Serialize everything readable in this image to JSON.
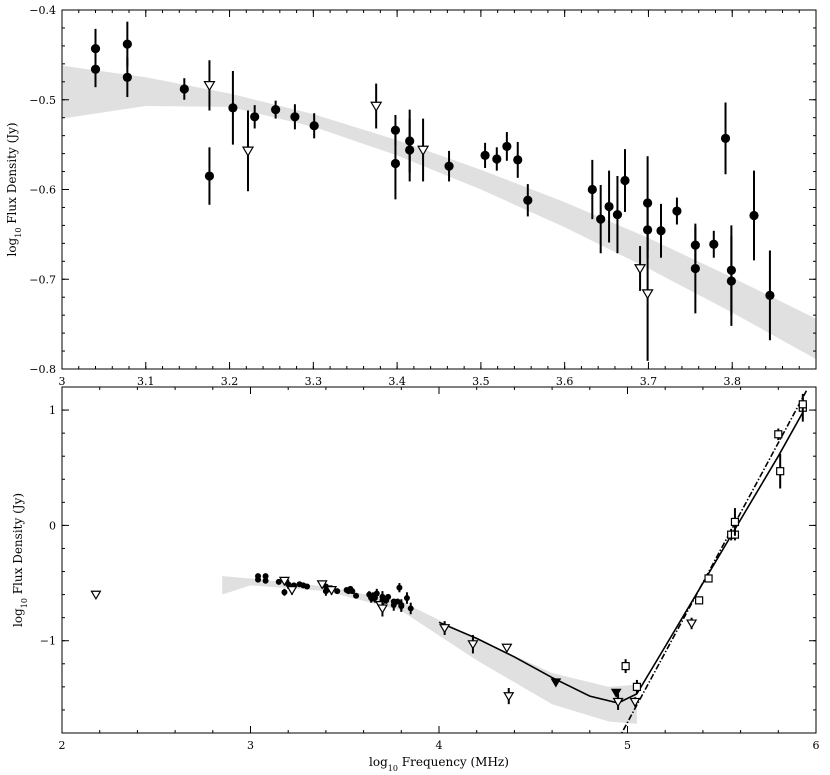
{
  "chart_data": [
    {
      "type": "scatter",
      "title": "",
      "xlabel": "",
      "ylabel": "log10 Flux Density (Jy)",
      "ylabel_parts": [
        "log",
        "10",
        " Flux Density (Jy)"
      ],
      "xlim": [
        3.0,
        3.9
      ],
      "ylim": [
        -0.8,
        -0.4
      ],
      "xticks": [
        3.0,
        3.1,
        3.2,
        3.3,
        3.4,
        3.5,
        3.6,
        3.7,
        3.8
      ],
      "xtick_labels": [
        "3",
        "3.1",
        "3.2",
        "3.3",
        "3.4",
        "3.5",
        "3.6",
        "3.7",
        "3.8"
      ],
      "yticks": [
        -0.8,
        -0.7,
        -0.6,
        -0.5,
        -0.4
      ],
      "ytick_labels": [
        "−0.8",
        "−0.7",
        "−0.6",
        "−0.5",
        "−0.4"
      ],
      "x_minor_step": 0.02,
      "y_minor_step": 0.02,
      "band": {
        "color": "#e0e0e0",
        "x": [
          3.0,
          3.1,
          3.2,
          3.3,
          3.4,
          3.5,
          3.6,
          3.7,
          3.8,
          3.9
        ],
        "upper": [
          -0.462,
          -0.475,
          -0.493,
          -0.516,
          -0.545,
          -0.578,
          -0.614,
          -0.654,
          -0.698,
          -0.744
        ],
        "lower": [
          -0.521,
          -0.507,
          -0.508,
          -0.53,
          -0.562,
          -0.6,
          -0.642,
          -0.688,
          -0.737,
          -0.789
        ]
      },
      "series": [
        {
          "marker": "filled-circle",
          "points": [
            {
              "x": 3.04,
              "y": -0.443,
              "err": 0.022
            },
            {
              "x": 3.04,
              "y": -0.466,
              "err": 0.02
            },
            {
              "x": 3.078,
              "y": -0.438,
              "err": 0.025
            },
            {
              "x": 3.078,
              "y": -0.475,
              "err": 0.022
            },
            {
              "x": 3.146,
              "y": -0.488,
              "err": 0.012
            },
            {
              "x": 3.176,
              "y": -0.585,
              "err": 0.032
            },
            {
              "x": 3.204,
              "y": -0.509,
              "err": 0.041
            },
            {
              "x": 3.23,
              "y": -0.519,
              "err": 0.013
            },
            {
              "x": 3.255,
              "y": -0.511,
              "err": 0.01
            },
            {
              "x": 3.278,
              "y": -0.519,
              "err": 0.014
            },
            {
              "x": 3.301,
              "y": -0.529,
              "err": 0.014
            },
            {
              "x": 3.398,
              "y": -0.534,
              "err": 0.017
            },
            {
              "x": 3.398,
              "y": -0.571,
              "err": 0.04
            },
            {
              "x": 3.415,
              "y": -0.546,
              "err": 0.035
            },
            {
              "x": 3.415,
              "y": -0.556,
              "err": 0.035
            },
            {
              "x": 3.462,
              "y": -0.574,
              "err": 0.017
            },
            {
              "x": 3.505,
              "y": -0.562,
              "err": 0.014
            },
            {
              "x": 3.519,
              "y": -0.566,
              "err": 0.013
            },
            {
              "x": 3.531,
              "y": -0.552,
              "err": 0.016
            },
            {
              "x": 3.544,
              "y": -0.567,
              "err": 0.02
            },
            {
              "x": 3.556,
              "y": -0.612,
              "err": 0.018
            },
            {
              "x": 3.633,
              "y": -0.6,
              "err": 0.033
            },
            {
              "x": 3.643,
              "y": -0.633,
              "err": 0.038
            },
            {
              "x": 3.653,
              "y": -0.619,
              "err": 0.04
            },
            {
              "x": 3.663,
              "y": -0.628,
              "err": 0.043
            },
            {
              "x": 3.672,
              "y": -0.59,
              "err": 0.035
            },
            {
              "x": 3.699,
              "y": -0.615,
              "err": 0.052
            },
            {
              "x": 3.699,
              "y": -0.645,
              "err": 0.032
            },
            {
              "x": 3.715,
              "y": -0.646,
              "err": 0.03
            },
            {
              "x": 3.734,
              "y": -0.624,
              "err": 0.015
            },
            {
              "x": 3.756,
              "y": -0.662,
              "err": 0.02
            },
            {
              "x": 3.756,
              "y": -0.688,
              "err": 0.05
            },
            {
              "x": 3.778,
              "y": -0.661,
              "err": 0.015
            },
            {
              "x": 3.792,
              "y": -0.543,
              "err": 0.04
            },
            {
              "x": 3.799,
              "y": -0.69,
              "err": 0.05
            },
            {
              "x": 3.799,
              "y": -0.702,
              "err": 0.05
            },
            {
              "x": 3.826,
              "y": -0.629,
              "err": 0.05
            },
            {
              "x": 3.845,
              "y": -0.718,
              "err": 0.05
            }
          ]
        },
        {
          "marker": "open-triangle-down",
          "points": [
            {
              "x": 3.176,
              "y": -0.484,
              "err": 0.028
            },
            {
              "x": 3.222,
              "y": -0.557,
              "err": 0.045
            },
            {
              "x": 3.375,
              "y": -0.507,
              "err": 0.025
            },
            {
              "x": 3.431,
              "y": -0.556,
              "err": 0.035
            },
            {
              "x": 3.69,
              "y": -0.688,
              "err": 0.025
            },
            {
              "x": 3.699,
              "y": -0.716,
              "err": 0.075
            }
          ]
        }
      ]
    },
    {
      "type": "scatter",
      "title": "",
      "xlabel": "log10 Frequency (MHz)",
      "xlabel_parts": [
        "log",
        "10",
        " Frequency (MHz)"
      ],
      "ylabel": "log10 Flux Density (Jy)",
      "ylabel_parts": [
        "log",
        "10",
        " Flux Density (Jy)"
      ],
      "xlim": [
        2,
        6
      ],
      "ylim": [
        -1.8,
        1.2
      ],
      "xticks": [
        2,
        3,
        4,
        5,
        6
      ],
      "xtick_labels": [
        "2",
        "3",
        "4",
        "5",
        "6"
      ],
      "yticks": [
        -1,
        0,
        1
      ],
      "ytick_labels": [
        "−1",
        "0",
        "1"
      ],
      "x_minor_step": 0.2,
      "y_minor_step": 0.2,
      "band": {
        "color": "#e0e0e0",
        "x": [
          2.85,
          3.0,
          3.4,
          3.8,
          4.2,
          4.6,
          4.9,
          5.05
        ],
        "upper": [
          -0.44,
          -0.46,
          -0.53,
          -0.66,
          -0.98,
          -1.28,
          -1.4,
          -1.38
        ],
        "lower": [
          -0.6,
          -0.52,
          -0.57,
          -0.74,
          -1.17,
          -1.55,
          -1.7,
          -1.72
        ]
      },
      "model_curve": {
        "x": [
          4.0,
          4.2,
          4.4,
          4.6,
          4.8,
          4.95,
          5.05,
          5.2,
          5.4,
          5.6,
          5.8,
          5.93
        ],
        "y": [
          -0.84,
          -0.98,
          -1.14,
          -1.32,
          -1.48,
          -1.54,
          -1.46,
          -1.05,
          -0.5,
          0.05,
          0.6,
          0.98
        ]
      },
      "powerlaw_line": {
        "x": [
          4.92,
          5.95
        ],
        "y": [
          -1.95,
          1.17
        ]
      },
      "series": [
        {
          "marker": "filled-circle",
          "points": [
            {
              "x": 3.04,
              "y": -0.44,
              "err": 0.02
            },
            {
              "x": 3.04,
              "y": -0.47,
              "err": 0.02
            },
            {
              "x": 3.08,
              "y": -0.44,
              "err": 0.02
            },
            {
              "x": 3.08,
              "y": -0.48,
              "err": 0.02
            },
            {
              "x": 3.15,
              "y": -0.49,
              "err": 0.01
            },
            {
              "x": 3.18,
              "y": -0.58,
              "err": 0.03
            },
            {
              "x": 3.2,
              "y": -0.51,
              "err": 0.04
            },
            {
              "x": 3.23,
              "y": -0.52,
              "err": 0.01
            },
            {
              "x": 3.26,
              "y": -0.51,
              "err": 0.01
            },
            {
              "x": 3.28,
              "y": -0.52,
              "err": 0.01
            },
            {
              "x": 3.3,
              "y": -0.53,
              "err": 0.01
            },
            {
              "x": 3.4,
              "y": -0.53,
              "err": 0.02
            },
            {
              "x": 3.4,
              "y": -0.57,
              "err": 0.04
            },
            {
              "x": 3.42,
              "y": -0.55,
              "err": 0.03
            },
            {
              "x": 3.46,
              "y": -0.57,
              "err": 0.02
            },
            {
              "x": 3.51,
              "y": -0.56,
              "err": 0.01
            },
            {
              "x": 3.52,
              "y": -0.57,
              "err": 0.01
            },
            {
              "x": 3.53,
              "y": -0.55,
              "err": 0.02
            },
            {
              "x": 3.54,
              "y": -0.57,
              "err": 0.02
            },
            {
              "x": 3.56,
              "y": -0.61,
              "err": 0.02
            },
            {
              "x": 3.63,
              "y": -0.6,
              "err": 0.03
            },
            {
              "x": 3.64,
              "y": -0.63,
              "err": 0.04
            },
            {
              "x": 3.65,
              "y": -0.62,
              "err": 0.04
            },
            {
              "x": 3.66,
              "y": -0.63,
              "err": 0.04
            },
            {
              "x": 3.67,
              "y": -0.59,
              "err": 0.04
            },
            {
              "x": 3.7,
              "y": -0.62,
              "err": 0.05
            },
            {
              "x": 3.7,
              "y": -0.65,
              "err": 0.03
            },
            {
              "x": 3.72,
              "y": -0.65,
              "err": 0.03
            },
            {
              "x": 3.73,
              "y": -0.62,
              "err": 0.02
            },
            {
              "x": 3.76,
              "y": -0.66,
              "err": 0.02
            },
            {
              "x": 3.76,
              "y": -0.69,
              "err": 0.05
            },
            {
              "x": 3.78,
              "y": -0.66,
              "err": 0.02
            },
            {
              "x": 3.79,
              "y": -0.54,
              "err": 0.04
            },
            {
              "x": 3.8,
              "y": -0.69,
              "err": 0.05
            },
            {
              "x": 3.8,
              "y": -0.7,
              "err": 0.05
            },
            {
              "x": 3.83,
              "y": -0.63,
              "err": 0.05
            },
            {
              "x": 3.85,
              "y": -0.72,
              "err": 0.05
            }
          ]
        },
        {
          "marker": "open-triangle-down",
          "points": [
            {
              "x": 2.18,
              "y": -0.6,
              "err": 0.0
            },
            {
              "x": 3.18,
              "y": -0.48,
              "err": 0.03
            },
            {
              "x": 3.22,
              "y": -0.56,
              "err": 0.04
            },
            {
              "x": 3.38,
              "y": -0.51,
              "err": 0.03
            },
            {
              "x": 3.43,
              "y": -0.56,
              "err": 0.04
            },
            {
              "x": 3.69,
              "y": -0.69,
              "err": 0.03
            },
            {
              "x": 3.7,
              "y": -0.72,
              "err": 0.07
            },
            {
              "x": 4.03,
              "y": -0.89,
              "err": 0.06
            },
            {
              "x": 4.18,
              "y": -1.03,
              "err": 0.08
            },
            {
              "x": 4.36,
              "y": -1.06,
              "err": 0.03
            },
            {
              "x": 4.37,
              "y": -1.48,
              "err": 0.07
            },
            {
              "x": 4.95,
              "y": -1.53,
              "err": 0.07
            },
            {
              "x": 5.04,
              "y": -1.53,
              "err": 0.04
            },
            {
              "x": 5.34,
              "y": -0.85,
              "err": 0.05
            }
          ]
        },
        {
          "marker": "filled-triangle-down",
          "points": [
            {
              "x": 4.62,
              "y": -1.36,
              "err": 0.0
            },
            {
              "x": 4.94,
              "y": -1.45,
              "err": 0.03
            }
          ]
        },
        {
          "marker": "open-square",
          "points": [
            {
              "x": 4.99,
              "y": -1.22,
              "err": 0.06
            },
            {
              "x": 5.05,
              "y": -1.4,
              "err": 0.06
            },
            {
              "x": 5.38,
              "y": -0.65,
              "err": 0.03
            },
            {
              "x": 5.43,
              "y": -0.46,
              "err": 0.03
            },
            {
              "x": 5.55,
              "y": -0.08,
              "err": 0.05
            },
            {
              "x": 5.57,
              "y": -0.08,
              "err": 0.05
            },
            {
              "x": 5.57,
              "y": 0.03,
              "err": 0.12
            },
            {
              "x": 5.8,
              "y": 0.79,
              "err": 0.05
            },
            {
              "x": 5.81,
              "y": 0.47,
              "err": 0.15
            },
            {
              "x": 5.93,
              "y": 1.02,
              "err": 0.12
            },
            {
              "x": 5.93,
              "y": 1.05,
              "err": 0.06
            }
          ]
        }
      ]
    }
  ]
}
